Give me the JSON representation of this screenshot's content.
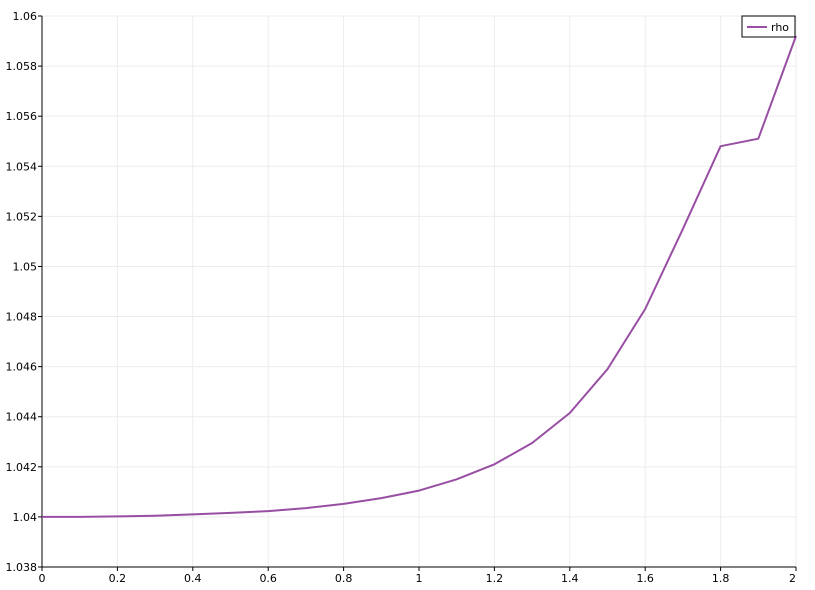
{
  "chart_data": {
    "type": "line",
    "title": "",
    "xlabel": "",
    "ylabel": "",
    "xlim": [
      0,
      2
    ],
    "ylim": [
      1.038,
      1.06
    ],
    "x_ticks": [
      0,
      0.2,
      0.4,
      0.6,
      0.8,
      1,
      1.2,
      1.4,
      1.6,
      1.8,
      2
    ],
    "x_tick_labels": [
      "0",
      "0.2",
      "0.4",
      "0.6",
      "0.8",
      "1",
      "1.2",
      "1.4",
      "1.6",
      "1.8",
      "2"
    ],
    "y_ticks": [
      1.038,
      1.04,
      1.042,
      1.044,
      1.046,
      1.048,
      1.05,
      1.052,
      1.054,
      1.056,
      1.058,
      1.06
    ],
    "y_tick_labels": [
      "1.038",
      "1.04",
      "1.042",
      "1.044",
      "1.046",
      "1.048",
      "1.05",
      "1.052",
      "1.054",
      "1.056",
      "1.058",
      "1.06"
    ],
    "grid": true,
    "legend_position": "top-right",
    "series": [
      {
        "name": "rho",
        "color": "#984ea3",
        "x": [
          0,
          0.1,
          0.2,
          0.3,
          0.4,
          0.5,
          0.6,
          0.7,
          0.8,
          0.9,
          1.0,
          1.1,
          1.2,
          1.3,
          1.4,
          1.5,
          1.6,
          1.7,
          1.8,
          1.9,
          2.0
        ],
        "y": [
          1.04,
          1.04,
          1.04002,
          1.04005,
          1.0401,
          1.04016,
          1.04023,
          1.04035,
          1.04052,
          1.04075,
          1.04105,
          1.0415,
          1.0421,
          1.04295,
          1.04415,
          1.0459,
          1.0483,
          1.0515,
          1.0548,
          1.0551,
          1.0592
        ]
      }
    ]
  }
}
